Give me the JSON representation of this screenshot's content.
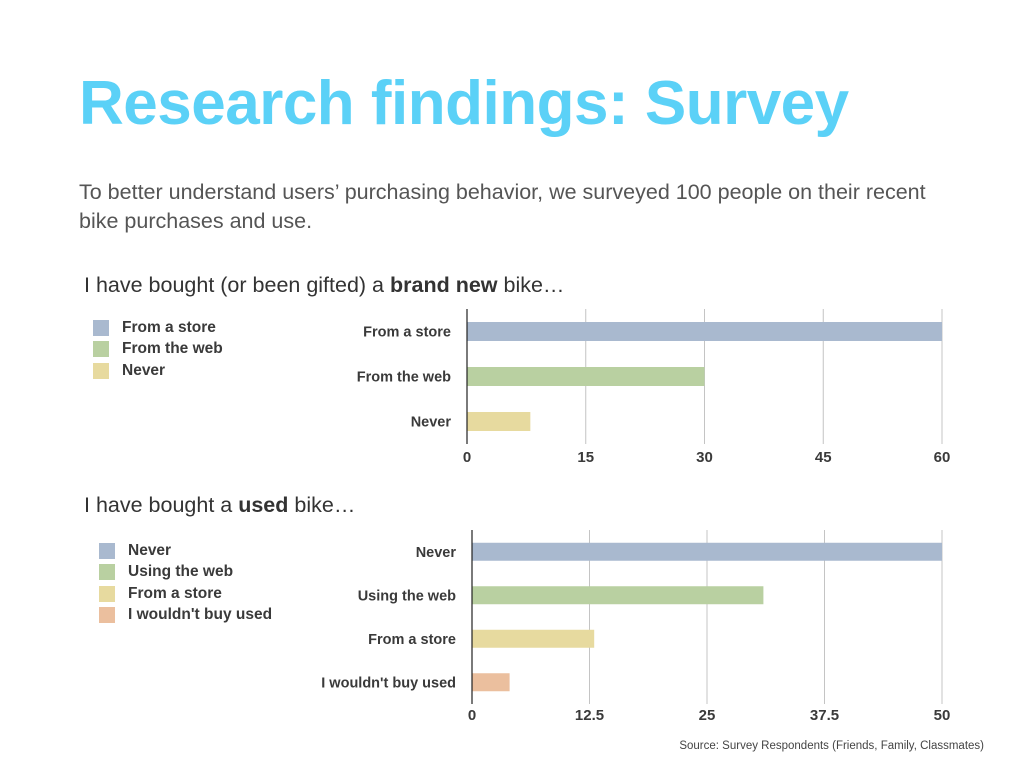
{
  "title": "Research findings: Survey",
  "subtitle": "To better understand users’ purchasing behavior, we surveyed 100 people on their recent bike purchases and use.",
  "source": "Source: Survey Respondents (Friends, Family, Classmates)",
  "chart_data": [
    {
      "type": "bar",
      "orientation": "horizontal",
      "heading": {
        "pre": "I have bought (or been gifted) a ",
        "bold": "brand new",
        "post": " bike…"
      },
      "categories": [
        "From a store",
        "From the web",
        "Never"
      ],
      "values": [
        60,
        30,
        8
      ],
      "colors": [
        "#a9b9cf",
        "#b9d0a1",
        "#e7da9f"
      ],
      "xlim": [
        0,
        60
      ],
      "ticks": [
        0,
        15,
        30,
        45,
        60
      ],
      "tick_labels": [
        "0",
        "15",
        "30",
        "45",
        "60"
      ],
      "grid": true,
      "legend": "left",
      "legend_entries": [
        "From a store",
        "From the web",
        "Never"
      ]
    },
    {
      "type": "bar",
      "orientation": "horizontal",
      "heading": {
        "pre": "I have bought a ",
        "bold": "used",
        "post": " bike…"
      },
      "categories": [
        "Never",
        "Using the web",
        "From a store",
        "I wouldn't buy used"
      ],
      "values": [
        50,
        31,
        13,
        4
      ],
      "colors": [
        "#a9b9cf",
        "#b9d0a1",
        "#e7da9f",
        "#ebbf9e"
      ],
      "xlim": [
        0,
        50
      ],
      "ticks": [
        0,
        12.5,
        25,
        37.5,
        50
      ],
      "tick_labels": [
        "0",
        "12.5",
        "25",
        "37.5",
        "50"
      ],
      "grid": true,
      "legend": "left",
      "legend_entries": [
        "Never",
        "Using the web",
        "From a store",
        "I wouldn't buy used"
      ]
    }
  ]
}
